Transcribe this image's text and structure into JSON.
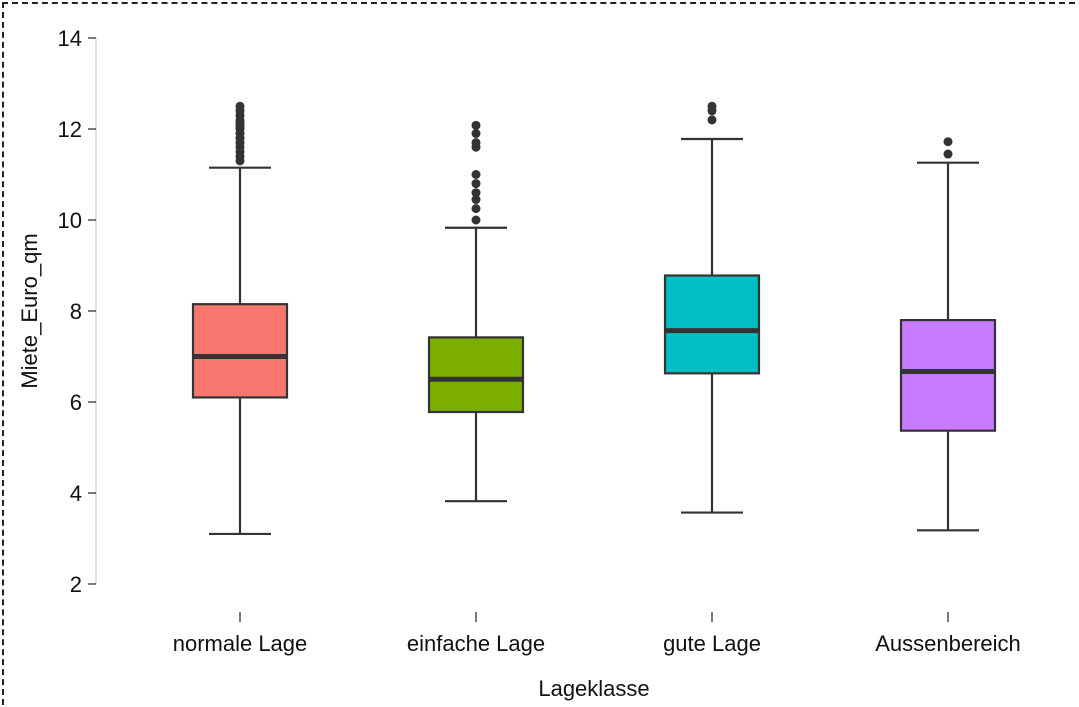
{
  "chart_data": {
    "type": "boxplot",
    "xlabel": "Lageklasse",
    "ylabel": "Miete_Euro_qm",
    "ylim": [
      2,
      14
    ],
    "yticks": [
      2,
      4,
      6,
      8,
      10,
      12,
      14
    ],
    "grid": false,
    "categories": [
      "normale Lage",
      "einfache Lage",
      "gute Lage",
      "Aussenbereich"
    ],
    "boxes": [
      {
        "category": "normale Lage",
        "whisker_low": 3.1,
        "q1": 6.1,
        "median": 7.0,
        "q3": 8.15,
        "whisker_high": 11.15,
        "outliers": [
          11.3,
          11.4,
          11.5,
          11.6,
          11.7,
          11.8,
          11.9,
          12.0,
          12.05,
          12.1,
          12.15,
          12.2,
          12.3,
          12.4,
          12.5
        ],
        "color": "#f8766d"
      },
      {
        "category": "einfache Lage",
        "whisker_low": 3.82,
        "q1": 5.78,
        "median": 6.5,
        "q3": 7.42,
        "whisker_high": 9.83,
        "outliers": [
          10.0,
          10.25,
          10.45,
          10.6,
          10.8,
          11.0,
          11.6,
          11.7,
          11.9,
          12.08
        ],
        "color": "#7cae00"
      },
      {
        "category": "gute Lage",
        "whisker_low": 3.57,
        "q1": 6.63,
        "median": 7.57,
        "q3": 8.78,
        "whisker_high": 11.78,
        "outliers": [
          12.2,
          12.4,
          12.5
        ],
        "color": "#00bfc4"
      },
      {
        "category": "Aussenbereich",
        "whisker_low": 3.18,
        "q1": 5.37,
        "median": 6.67,
        "q3": 7.8,
        "whisker_high": 11.26,
        "outliers": [
          11.45,
          11.72
        ],
        "color": "#c77cff"
      }
    ]
  }
}
